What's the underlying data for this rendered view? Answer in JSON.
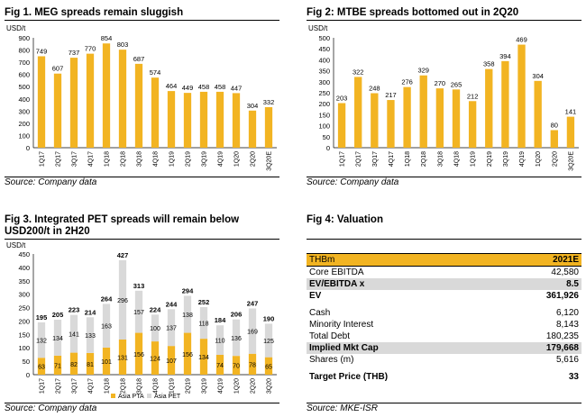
{
  "fig1": {
    "title": "Fig 1. MEG spreads remain sluggish",
    "source": "Source: Company data",
    "chart_data": {
      "type": "bar",
      "title": "Fig 1. MEG spreads remain sluggish",
      "ylabel": "USD/t",
      "ylim": [
        0,
        900
      ],
      "yticks": [
        0,
        100,
        200,
        300,
        400,
        500,
        600,
        700,
        800,
        900
      ],
      "categories": [
        "1Q17",
        "2Q17",
        "3Q17",
        "4Q17",
        "1Q18",
        "2Q18",
        "3Q18",
        "4Q18",
        "1Q19",
        "2Q19",
        "3Q19",
        "4Q19",
        "1Q20",
        "2Q20",
        "3Q20E"
      ],
      "values": [
        749,
        607,
        737,
        770,
        854,
        803,
        687,
        574,
        464,
        449,
        458,
        458,
        447,
        304,
        332
      ],
      "color": "#f2b422"
    }
  },
  "fig2": {
    "title": "Fig 2: MTBE spreads bottomed out in 2Q20",
    "source": "Source: Company data",
    "chart_data": {
      "type": "bar",
      "title": "Fig 2: MTBE spreads bottomed out in 2Q20",
      "ylabel": "USD/t",
      "ylim": [
        0,
        500
      ],
      "yticks": [
        0,
        50,
        100,
        150,
        200,
        250,
        300,
        350,
        400,
        450,
        500
      ],
      "categories": [
        "1Q17",
        "2Q17",
        "3Q17",
        "4Q17",
        "1Q18",
        "2Q18",
        "3Q18",
        "4Q18",
        "1Q19",
        "2Q19",
        "3Q19",
        "4Q19",
        "1Q20",
        "2Q20",
        "3Q20E"
      ],
      "values": [
        203,
        322,
        248,
        217,
        276,
        329,
        270,
        265,
        212,
        358,
        394,
        469,
        304,
        80,
        141
      ],
      "color": "#f2b422"
    }
  },
  "fig3": {
    "title": "Fig 3. Integrated PET spreads will remain below USD200/t in 2H20",
    "source": "Source: Company data",
    "chart_data": {
      "type": "bar",
      "stacked": true,
      "title": "Fig 3. Integrated PET spreads will remain below USD200/t in 2H20",
      "ylabel": "USD/t",
      "ylim": [
        0,
        450
      ],
      "yticks": [
        0,
        50,
        100,
        150,
        200,
        250,
        300,
        350,
        400,
        450
      ],
      "categories": [
        "1Q17",
        "2Q17",
        "3Q17",
        "4Q17",
        "1Q18",
        "2Q18",
        "3Q18",
        "4Q18",
        "1Q19",
        "2Q19",
        "3Q19",
        "4Q19",
        "1Q20",
        "2Q20",
        "3Q20"
      ],
      "series": [
        {
          "name": "Asia PTA",
          "color": "#f2b422",
          "values": [
            63,
            71,
            82,
            81,
            101,
            131,
            156,
            124,
            107,
            156,
            134,
            74,
            70,
            78,
            65
          ]
        },
        {
          "name": "Asia PET",
          "color": "#d9d9d9",
          "values": [
            132,
            134,
            141,
            133,
            163,
            296,
            157,
            100,
            137,
            138,
            118,
            110,
            136,
            169,
            125
          ]
        }
      ],
      "totals": [
        195,
        205,
        223,
        214,
        264,
        427,
        313,
        224,
        244,
        294,
        252,
        184,
        206,
        247,
        190
      ],
      "legend_position": "bottom-left"
    }
  },
  "fig4": {
    "title": "Fig 4: Valuation",
    "source": "Source: MKE-ISR",
    "header": {
      "label": "THBm",
      "value": "2021E"
    },
    "rows": [
      {
        "label": "Core EBITDA",
        "value": "42,580"
      },
      {
        "label": "EV/EBITDA x",
        "value": "8.5"
      },
      {
        "label": "EV",
        "value": "361,926"
      },
      {
        "label": "Cash",
        "value": "6,120"
      },
      {
        "label": "Minority Interest",
        "value": "8,143"
      },
      {
        "label": "Total Debt",
        "value": "180,235"
      },
      {
        "label": "Implied Mkt Cap",
        "value": "179,668"
      },
      {
        "label": "Shares (m)",
        "value": "5,616"
      },
      {
        "label": "Target Price (THB)",
        "value": "33"
      }
    ]
  }
}
